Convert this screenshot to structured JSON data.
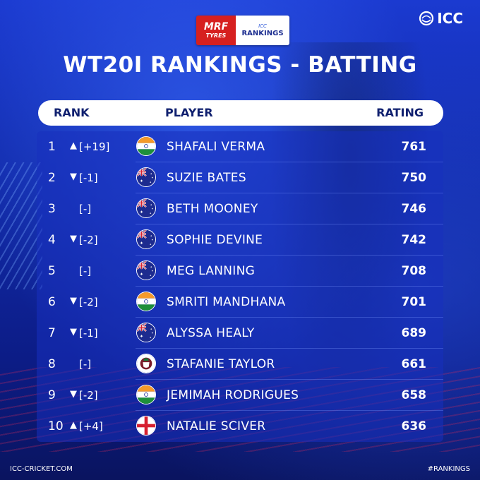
{
  "sponsor": {
    "mrf_line1": "MRF",
    "mrf_line2": "TYRES",
    "icc_line1": "ICC",
    "icc_line2": "RANKINGS"
  },
  "logo": {
    "text": "ICC"
  },
  "title": "WT20I RANKINGS - BATTING",
  "columns": {
    "rank": "RANK",
    "player": "PLAYER",
    "rating": "RATING"
  },
  "rows": [
    {
      "rank": "1",
      "arrow": "up",
      "change": "[+19]",
      "flag": "india",
      "name": "SHAFALI VERMA",
      "rating": "761"
    },
    {
      "rank": "2",
      "arrow": "down",
      "change": "[-1]",
      "flag": "australia",
      "name": "SUZIE BATES",
      "rating": "750"
    },
    {
      "rank": "3",
      "arrow": "none",
      "change": "[-]",
      "flag": "australia",
      "name": "BETH MOONEY",
      "rating": "746"
    },
    {
      "rank": "4",
      "arrow": "down",
      "change": "[-2]",
      "flag": "australia",
      "name": "SOPHIE DEVINE",
      "rating": "742"
    },
    {
      "rank": "5",
      "arrow": "none",
      "change": "[-]",
      "flag": "australia",
      "name": "MEG LANNING",
      "rating": "708"
    },
    {
      "rank": "6",
      "arrow": "down",
      "change": "[-2]",
      "flag": "india",
      "name": "SMRITI MANDHANA",
      "rating": "701"
    },
    {
      "rank": "7",
      "arrow": "down",
      "change": "[-1]",
      "flag": "australia",
      "name": "ALYSSA HEALY",
      "rating": "689"
    },
    {
      "rank": "8",
      "arrow": "none",
      "change": "[-]",
      "flag": "west-indies",
      "name": "STAFANIE TAYLOR",
      "rating": "661"
    },
    {
      "rank": "9",
      "arrow": "down",
      "change": "[-2]",
      "flag": "india",
      "name": "JEMIMAH RODRIGUES",
      "rating": "658"
    },
    {
      "rank": "10",
      "arrow": "up",
      "change": "[+4]",
      "flag": "england",
      "name": "NATALIE SCIVER",
      "rating": "636"
    }
  ],
  "footer": {
    "left": "ICC-CRICKET.COM",
    "right": "#RANKINGS"
  }
}
